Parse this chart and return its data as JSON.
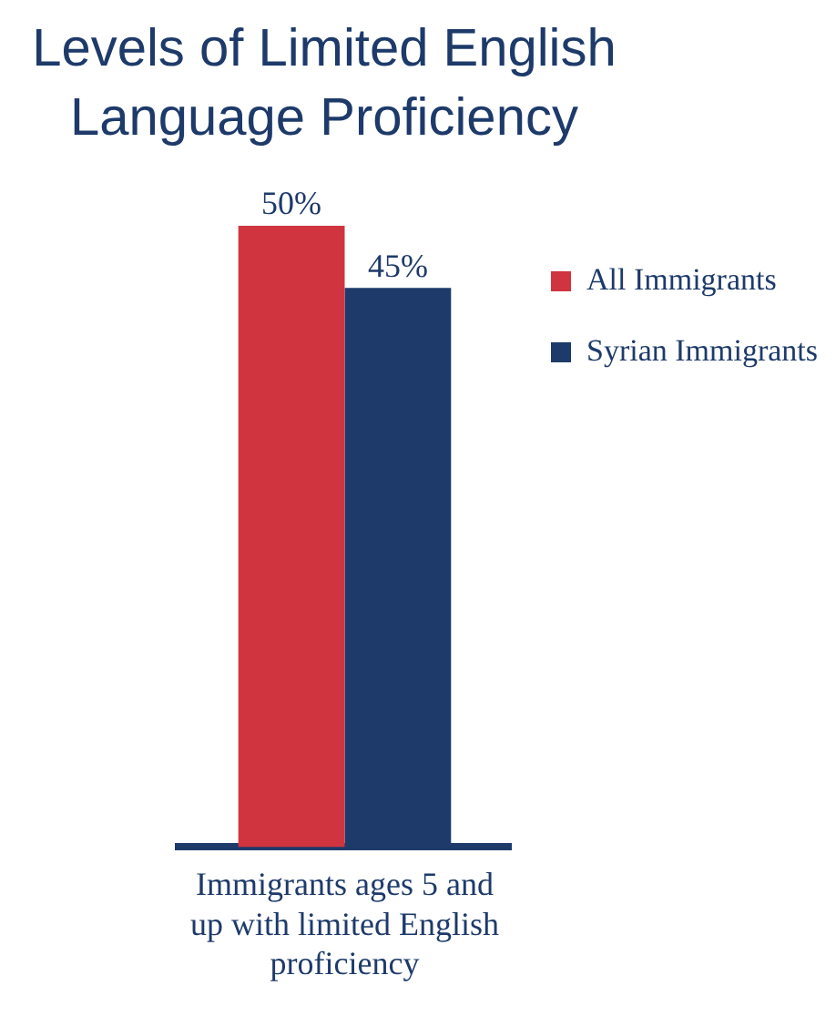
{
  "chart_data": {
    "type": "bar",
    "title": "Levels of Limited English Language Proficiency",
    "categories": [
      "Immigrants ages 5 and up with limited English proficiency"
    ],
    "series": [
      {
        "name": "All Immigrants",
        "color": "#d0343f",
        "values": [
          50
        ],
        "value_labels": [
          "50%"
        ]
      },
      {
        "name": "Syrian Immigrants",
        "color": "#1d3a6a",
        "values": [
          45
        ],
        "value_labels": [
          "45%"
        ]
      }
    ],
    "legend": "top right"
  }
}
